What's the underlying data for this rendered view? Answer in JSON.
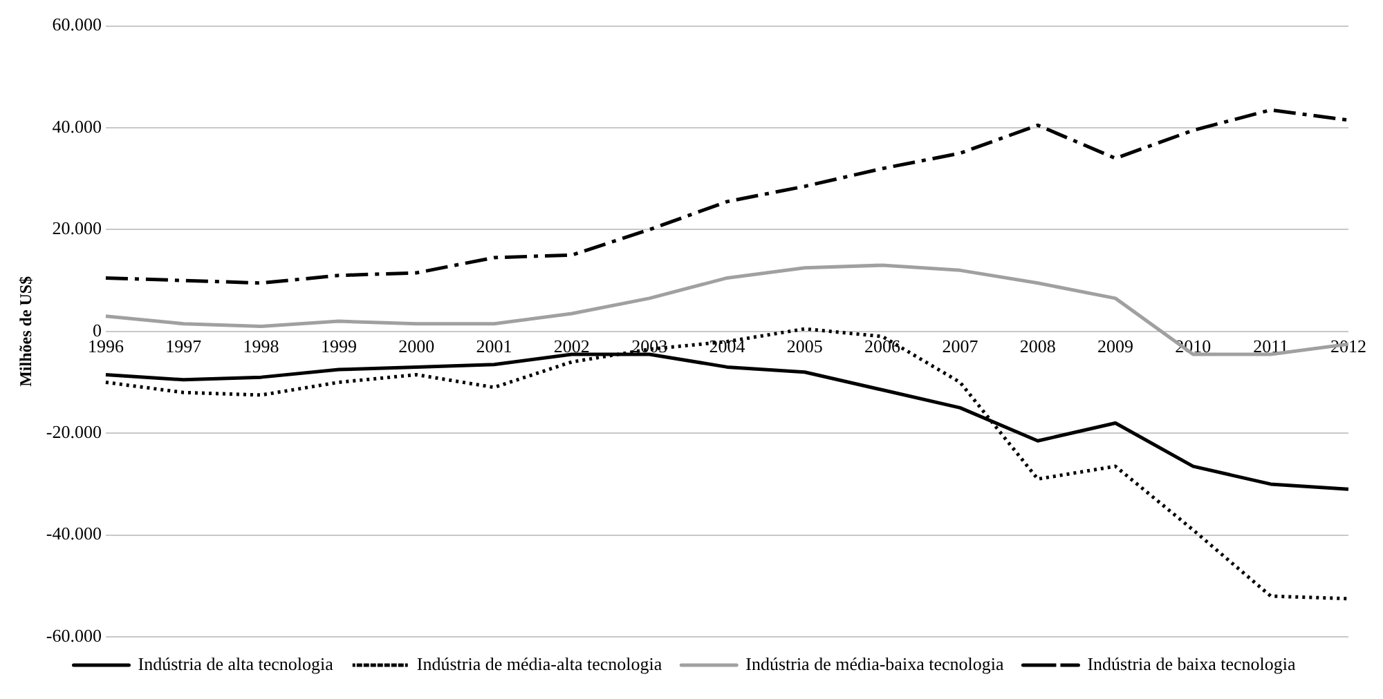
{
  "chart_data": {
    "type": "line",
    "ylabel": "Milhões de US$",
    "categories": [
      "1996",
      "1997",
      "1998",
      "1999",
      "2000",
      "2001",
      "2002",
      "2003",
      "2004",
      "2005",
      "2006",
      "2007",
      "2008",
      "2009",
      "2010",
      "2011",
      "2012"
    ],
    "series": [
      {
        "name": "Indústria de alta tecnologia",
        "color": "#000000",
        "line_style": "solid",
        "values": [
          -8500,
          -9500,
          -9000,
          -7500,
          -7000,
          -6500,
          -4500,
          -4500,
          -7000,
          -8000,
          -11500,
          -15000,
          -21500,
          -18000,
          -26500,
          -30000,
          -31000
        ]
      },
      {
        "name": "Indústria de média-alta tecnologia",
        "color": "#000000",
        "line_style": "dotted",
        "values": [
          -10000,
          -12000,
          -12500,
          -10000,
          -8500,
          -11000,
          -6000,
          -3500,
          -2000,
          500,
          -1000,
          -10000,
          -29000,
          -26500,
          -39000,
          -52000,
          -52500
        ]
      },
      {
        "name": "Indústria de média-baixa tecnologia",
        "color": "#a0a0a0",
        "line_style": "solid",
        "values": [
          3000,
          1500,
          1000,
          2000,
          1500,
          1500,
          3500,
          6500,
          10500,
          12500,
          13000,
          12000,
          9500,
          6500,
          -4500,
          -4500,
          -2500
        ]
      },
      {
        "name": "Indústria de baixa tecnologia",
        "color": "#000000",
        "line_style": "dashed",
        "values": [
          10500,
          10000,
          9500,
          11000,
          11500,
          14500,
          15000,
          20000,
          25500,
          28500,
          32000,
          35000,
          40500,
          34000,
          39500,
          43500,
          41500
        ]
      }
    ],
    "ylim": [
      -60000,
      60000
    ],
    "yticks": [
      {
        "value": -60000,
        "label": "-60.000"
      },
      {
        "value": -40000,
        "label": "-40.000"
      },
      {
        "value": -20000,
        "label": "-20.000"
      },
      {
        "value": 0,
        "label": "0"
      },
      {
        "value": 20000,
        "label": "20.000"
      },
      {
        "value": 40000,
        "label": "40.000"
      },
      {
        "value": 60000,
        "label": "60.000"
      }
    ],
    "grid": "y",
    "legend": "bottom",
    "marker": "none"
  }
}
